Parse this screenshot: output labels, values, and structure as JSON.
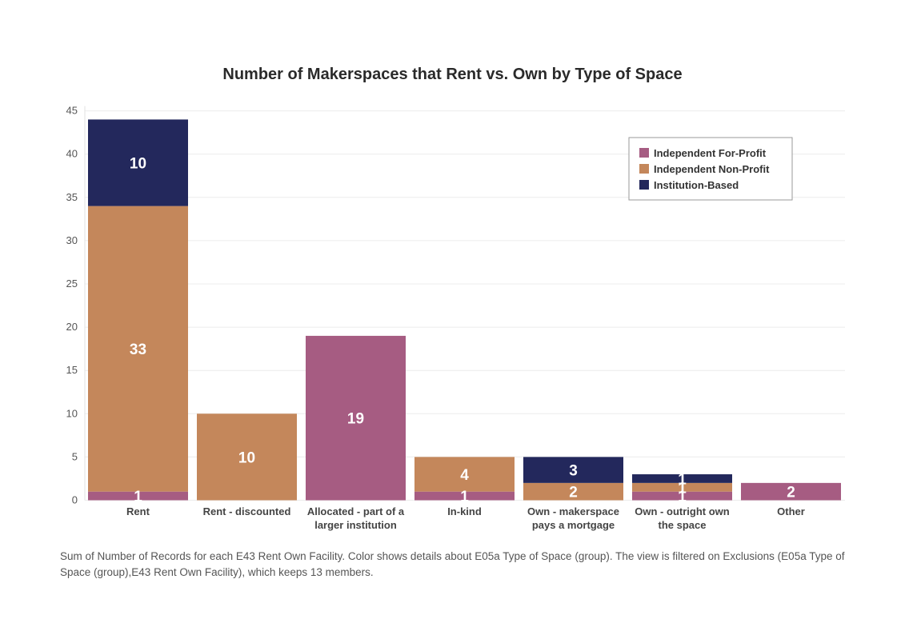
{
  "chart_data": {
    "type": "bar",
    "stacked": true,
    "title": "Number of Makerspaces that Rent vs. Own by Type of Space",
    "categories": [
      [
        "Rent"
      ],
      [
        "Rent - discounted"
      ],
      [
        "Allocated - part of a",
        "larger institution"
      ],
      [
        "In-kind"
      ],
      [
        "Own - makerspace",
        "pays a mortgage"
      ],
      [
        "Own - outright own",
        "the space"
      ],
      [
        "Other"
      ]
    ],
    "series": [
      {
        "name": "Independent For-Profit",
        "color": "#a65c82",
        "values": [
          1,
          0,
          19,
          1,
          0,
          1,
          2
        ]
      },
      {
        "name": "Independent Non-Profit",
        "color": "#c4875b",
        "values": [
          33,
          10,
          0,
          4,
          2,
          1,
          0
        ]
      },
      {
        "name": "Institution-Based",
        "color": "#23285c",
        "values": [
          10,
          0,
          0,
          0,
          3,
          1,
          0
        ]
      }
    ],
    "ylim": [
      0,
      45
    ],
    "yticks": [
      0,
      5,
      10,
      15,
      20,
      25,
      30,
      35,
      40,
      45
    ],
    "grid": true,
    "legend_position": "top-right"
  },
  "footnote": "Sum of Number of Records for each E43 Rent Own Facility.  Color shows details about E05a Type of Space (group). The view is filtered on Exclusions (E05a Type of Space (group),E43 Rent Own Facility), which keeps 13 members."
}
